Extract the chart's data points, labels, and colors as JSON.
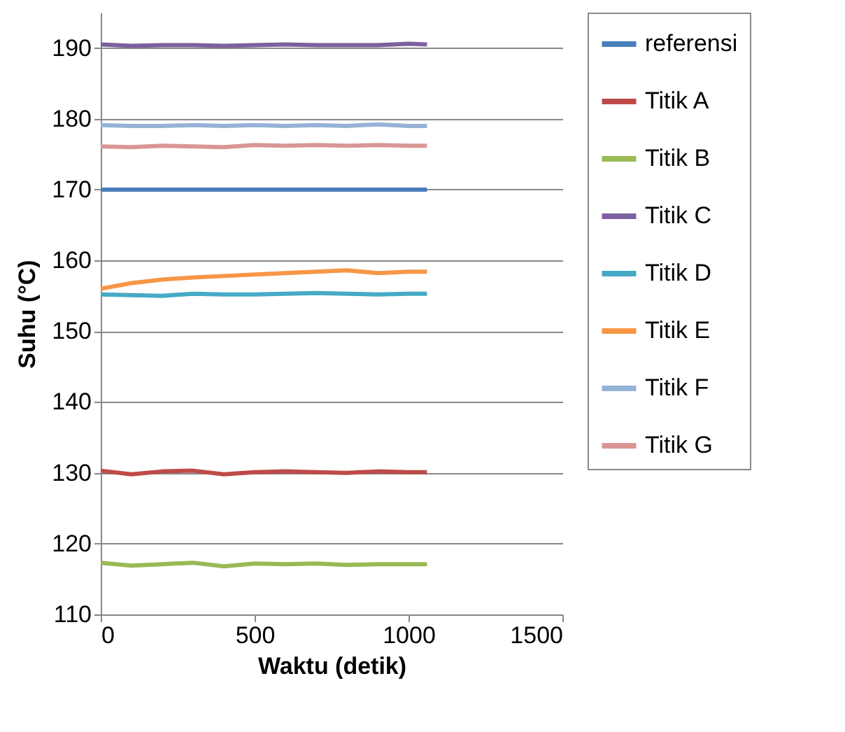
{
  "chart_data": {
    "type": "line",
    "xlabel": "Waktu (detik)",
    "ylabel": "Suhu (°C)",
    "x": [
      0,
      100,
      200,
      300,
      400,
      500,
      600,
      700,
      800,
      900,
      1000,
      1060
    ],
    "xlim": [
      0,
      1500
    ],
    "xticks": [
      0,
      500,
      1000,
      1500
    ],
    "ylim": [
      110,
      195
    ],
    "yticks": [
      110,
      120,
      130,
      140,
      150,
      160,
      170,
      180,
      190
    ],
    "grid": "y",
    "legend": "right",
    "marker": "none",
    "line_style": "solid",
    "series": [
      {
        "name": "referensi",
        "color": "#4a7ebb",
        "values": [
          170,
          170,
          170,
          170,
          170,
          170,
          170,
          170,
          170,
          170,
          170,
          170
        ]
      },
      {
        "name": "Titik A",
        "color": "#be4b48",
        "values": [
          130.3,
          129.8,
          130.2,
          130.3,
          129.8,
          130.1,
          130.2,
          130.1,
          130,
          130.2,
          130.1,
          130.1
        ]
      },
      {
        "name": "Titik B",
        "color": "#98b954",
        "values": [
          117.3,
          116.9,
          117.1,
          117.3,
          116.8,
          117.2,
          117.1,
          117.2,
          117,
          117.1,
          117.1,
          117.1
        ]
      },
      {
        "name": "Titik C",
        "color": "#7d60a0",
        "values": [
          190.5,
          190.3,
          190.4,
          190.4,
          190.3,
          190.4,
          190.5,
          190.4,
          190.4,
          190.4,
          190.6,
          190.5
        ]
      },
      {
        "name": "Titik D",
        "color": "#46aac5",
        "values": [
          155.2,
          155.1,
          155,
          155.3,
          155.2,
          155.2,
          155.3,
          155.4,
          155.3,
          155.2,
          155.3,
          155.3
        ]
      },
      {
        "name": "Titik E",
        "color": "#f79646",
        "values": [
          156,
          156.8,
          157.3,
          157.6,
          157.8,
          158,
          158.2,
          158.4,
          158.6,
          158.2,
          158.4,
          158.4
        ]
      },
      {
        "name": "Titik F",
        "color": "#95b3d7",
        "values": [
          179.1,
          179,
          179,
          179.1,
          179,
          179.1,
          179,
          179.1,
          179,
          179.2,
          179,
          179
        ]
      },
      {
        "name": "Titik G",
        "color": "#d99694",
        "values": [
          176.1,
          176,
          176.2,
          176.1,
          176,
          176.3,
          176.2,
          176.3,
          176.2,
          176.3,
          176.2,
          176.2
        ]
      }
    ]
  }
}
